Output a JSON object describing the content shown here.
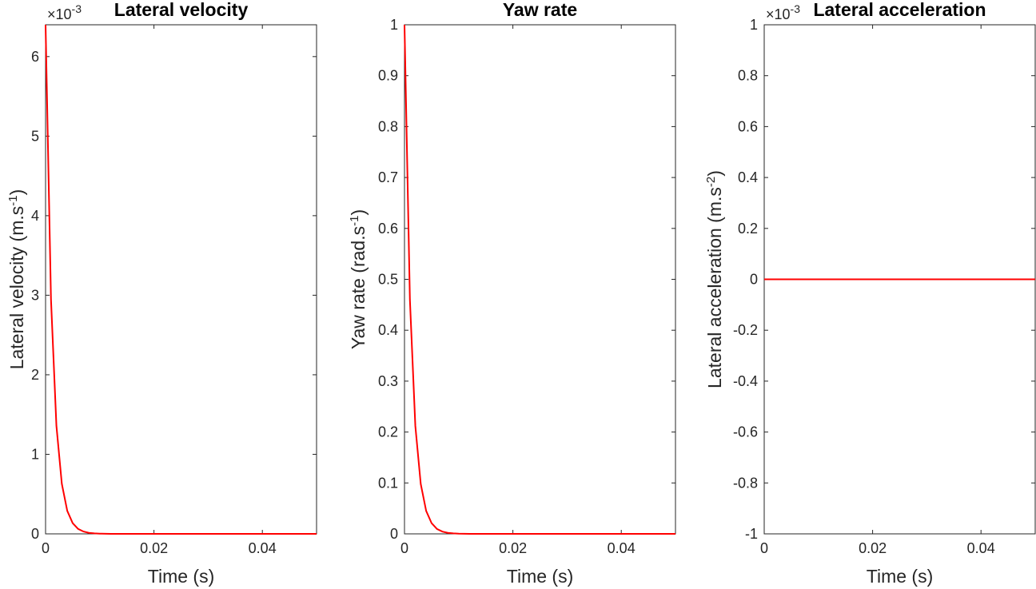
{
  "chart_data": [
    {
      "type": "line",
      "title": "Lateral velocity",
      "xlabel": "Time (s)",
      "ylabel": {
        "base": "Lateral velocity (m.s",
        "sup": "-1",
        "close": ")"
      },
      "y_exponent": {
        "base": "×10",
        "sup": "-3"
      },
      "xlim": [
        0,
        0.05
      ],
      "ylim": [
        0,
        6.4
      ],
      "x_ticks": [
        0,
        0.02,
        0.04
      ],
      "x_tick_labels": [
        "0",
        "0.02",
        "0.04"
      ],
      "y_ticks": [
        0,
        1,
        2,
        3,
        4,
        5,
        6
      ],
      "y_tick_labels": [
        "0",
        "1",
        "2",
        "3",
        "4",
        "5",
        "6"
      ],
      "grid": false,
      "color": "#ff0000",
      "series": [
        {
          "x": [
            0,
            0.001,
            0.002,
            0.003,
            0.004,
            0.005,
            0.006,
            0.007,
            0.008,
            0.009,
            0.01,
            0.012,
            0.015,
            0.02,
            0.03,
            0.04,
            0.05
          ],
          "values": [
            6.4,
            2.95,
            1.36,
            0.63,
            0.29,
            0.135,
            0.062,
            0.029,
            0.013,
            0.006,
            0.003,
            0.0006,
            0.0001,
            0,
            0,
            0,
            0
          ]
        }
      ]
    },
    {
      "type": "line",
      "title": "Yaw rate",
      "xlabel": "Time (s)",
      "ylabel": {
        "base": "Yaw rate (rad.s",
        "sup": "-1",
        "close": ")"
      },
      "y_exponent": null,
      "xlim": [
        0,
        0.05
      ],
      "ylim": [
        0,
        1
      ],
      "x_ticks": [
        0,
        0.02,
        0.04
      ],
      "x_tick_labels": [
        "0",
        "0.02",
        "0.04"
      ],
      "y_ticks": [
        0,
        0.1,
        0.2,
        0.3,
        0.4,
        0.5,
        0.6,
        0.7,
        0.8,
        0.9,
        1
      ],
      "y_tick_labels": [
        "0",
        "0.1",
        "0.2",
        "0.3",
        "0.4",
        "0.5",
        "0.6",
        "0.7",
        "0.8",
        "0.9",
        "1"
      ],
      "grid": false,
      "color": "#ff0000",
      "series": [
        {
          "x": [
            0,
            0.001,
            0.002,
            0.003,
            0.004,
            0.005,
            0.006,
            0.007,
            0.008,
            0.009,
            0.01,
            0.012,
            0.015,
            0.02,
            0.03,
            0.04,
            0.05
          ],
          "values": [
            1.0,
            0.46,
            0.212,
            0.098,
            0.045,
            0.021,
            0.0096,
            0.0044,
            0.002,
            0.0009,
            0.0004,
            0.0001,
            0,
            0,
            0,
            0,
            0
          ]
        }
      ]
    },
    {
      "type": "line",
      "title": "Lateral acceleration",
      "xlabel": "Time (s)",
      "ylabel": {
        "base": "Lateral acceleration (m.s",
        "sup": "-2",
        "close": ")"
      },
      "y_exponent": {
        "base": "×10",
        "sup": "-3"
      },
      "xlim": [
        0,
        0.05
      ],
      "ylim": [
        -1,
        1
      ],
      "x_ticks": [
        0,
        0.02,
        0.04
      ],
      "x_tick_labels": [
        "0",
        "0.02",
        "0.04"
      ],
      "y_ticks": [
        -1,
        -0.8,
        -0.6,
        -0.4,
        -0.2,
        0,
        0.2,
        0.4,
        0.6,
        0.8,
        1
      ],
      "y_tick_labels": [
        "-1",
        "-0.8",
        "-0.6",
        "-0.4",
        "-0.2",
        "0",
        "0.2",
        "0.4",
        "0.6",
        "0.8",
        "1"
      ],
      "grid": false,
      "color": "#ff0000",
      "series": [
        {
          "x": [
            0,
            0.01,
            0.02,
            0.03,
            0.04,
            0.05
          ],
          "values": [
            0,
            0,
            0,
            0,
            0,
            0
          ]
        }
      ]
    }
  ]
}
